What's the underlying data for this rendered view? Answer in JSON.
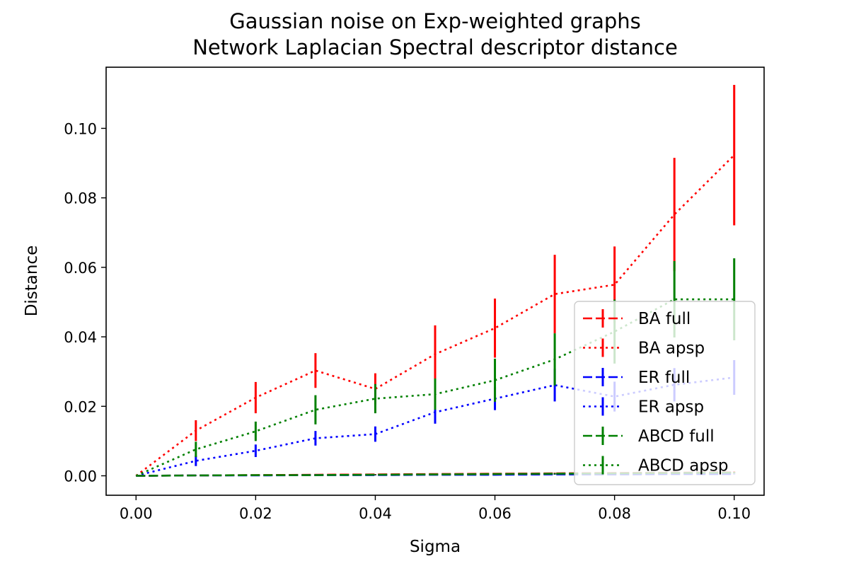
{
  "chart_data": {
    "type": "line",
    "title": "Gaussian noise on Exp-weighted graphs",
    "subtitle": "Network Laplacian Spectral descriptor distance",
    "xlabel": "Sigma",
    "ylabel": "Distance",
    "xlim": [
      -0.005,
      0.105
    ],
    "ylim": [
      -0.0056,
      0.1176
    ],
    "xticks": [
      "0.00",
      "0.02",
      "0.04",
      "0.06",
      "0.08",
      "0.10"
    ],
    "yticks": [
      "0.00",
      "0.02",
      "0.04",
      "0.06",
      "0.08",
      "0.10"
    ],
    "x": [
      0.0,
      0.01,
      0.02,
      0.03,
      0.04,
      0.05,
      0.06,
      0.07,
      0.08,
      0.09,
      0.1
    ],
    "grid": false,
    "legend_position": "lower right",
    "series": [
      {
        "name": "BA full",
        "color": "#ff0000",
        "dash": "dashed",
        "values": [
          0,
          0.0001,
          0.0002,
          0.0003,
          0.0004,
          0.0005,
          0.0006,
          0.0007,
          0.0008,
          0.0009,
          0.001
        ],
        "errors": [
          0,
          5e-05,
          0.0001,
          0.0001,
          0.0001,
          0.00015,
          0.0002,
          0.0002,
          0.0002,
          0.0003,
          0.0003
        ]
      },
      {
        "name": "BA apsp",
        "color": "#ff0000",
        "dash": "dotted",
        "values": [
          0,
          0.013,
          0.0225,
          0.0303,
          0.025,
          0.035,
          0.0425,
          0.0523,
          0.055,
          0.0752,
          0.0923
        ],
        "errors": [
          0,
          0.003,
          0.0045,
          0.005,
          0.0045,
          0.0083,
          0.0085,
          0.0113,
          0.011,
          0.0163,
          0.0202
        ]
      },
      {
        "name": "ER full",
        "color": "#0000ff",
        "dash": "dashed",
        "values": [
          0,
          0.0001,
          0.0001,
          0.0002,
          0.0002,
          0.0003,
          0.0003,
          0.0004,
          0.0004,
          0.0005,
          0.0005
        ],
        "errors": [
          0,
          5e-05,
          5e-05,
          0.0001,
          0.0001,
          0.0001,
          0.0001,
          0.0001,
          0.0001,
          0.0001,
          0.0001
        ]
      },
      {
        "name": "ER apsp",
        "color": "#0000ff",
        "dash": "dotted",
        "values": [
          0,
          0.0043,
          0.0072,
          0.0108,
          0.012,
          0.0183,
          0.0222,
          0.0261,
          0.0228,
          0.0262,
          0.0283
        ],
        "errors": [
          0,
          0.0015,
          0.0018,
          0.0021,
          0.0022,
          0.0033,
          0.0033,
          0.0047,
          0.0043,
          0.0048,
          0.005
        ]
      },
      {
        "name": "ABCD full",
        "color": "#008000",
        "dash": "dashed",
        "values": [
          0,
          0.0001,
          0.0002,
          0.0002,
          0.0003,
          0.0004,
          0.0005,
          0.0006,
          0.0007,
          0.0008,
          0.0009
        ],
        "errors": [
          0,
          5e-05,
          0.0001,
          0.0001,
          0.0001,
          0.0001,
          0.00015,
          0.0002,
          0.0002,
          0.0002,
          0.0002
        ]
      },
      {
        "name": "ABCD apsp",
        "color": "#008000",
        "dash": "dotted",
        "values": [
          0,
          0.0076,
          0.0128,
          0.019,
          0.0222,
          0.0235,
          0.0275,
          0.0335,
          0.0415,
          0.0508,
          0.0508
        ],
        "errors": [
          0,
          0.0022,
          0.0028,
          0.0042,
          0.0042,
          0.0045,
          0.0062,
          0.0075,
          0.0092,
          0.011,
          0.0118
        ]
      }
    ]
  }
}
